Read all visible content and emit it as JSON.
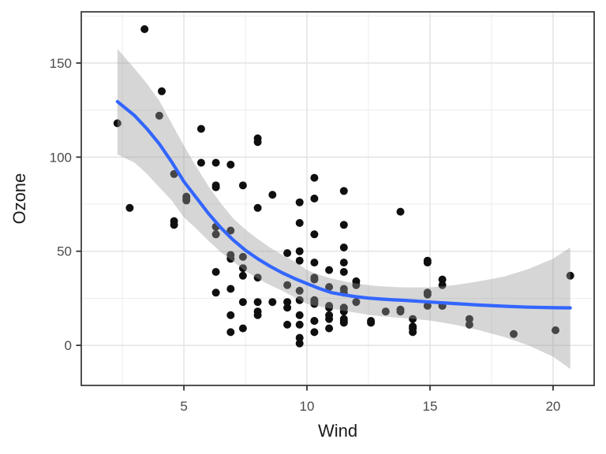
{
  "chart_data": {
    "type": "scatter",
    "title": "",
    "xlabel": "Wind",
    "ylabel": "Ozone",
    "grid": "on",
    "legend": "none",
    "x_domain": [
      0.83,
      21.67
    ],
    "y_domain": [
      -21.3,
      177.2
    ],
    "x_ticks": [
      5,
      10,
      15,
      20
    ],
    "x_tick_labels": [
      "5",
      "10",
      "15",
      "20"
    ],
    "y_ticks": [
      0,
      50,
      100,
      150
    ],
    "y_tick_labels": [
      "0",
      "50",
      "100",
      "150"
    ],
    "x_minor_gridlines": [
      2.5,
      7.5,
      12.5,
      17.5
    ],
    "y_minor_gridlines": [
      25,
      75,
      125,
      175
    ],
    "points": [
      [
        7.4,
        41
      ],
      [
        8.0,
        36
      ],
      [
        12.6,
        12
      ],
      [
        11.5,
        18
      ],
      [
        14.9,
        28
      ],
      [
        8.6,
        23
      ],
      [
        13.8,
        19
      ],
      [
        20.1,
        8
      ],
      [
        6.9,
        7
      ],
      [
        9.7,
        16
      ],
      [
        9.2,
        11
      ],
      [
        10.9,
        14
      ],
      [
        13.2,
        18
      ],
      [
        11.5,
        14
      ],
      [
        12.0,
        34
      ],
      [
        18.4,
        6
      ],
      [
        11.5,
        30
      ],
      [
        9.7,
        11
      ],
      [
        9.7,
        1
      ],
      [
        16.6,
        11
      ],
      [
        9.7,
        4
      ],
      [
        12.0,
        32
      ],
      [
        12.0,
        23
      ],
      [
        14.9,
        45
      ],
      [
        5.7,
        115
      ],
      [
        7.4,
        37
      ],
      [
        9.7,
        29
      ],
      [
        13.8,
        71
      ],
      [
        11.5,
        39
      ],
      [
        8.0,
        23
      ],
      [
        14.9,
        21
      ],
      [
        20.7,
        37
      ],
      [
        9.2,
        20
      ],
      [
        11.5,
        12
      ],
      [
        10.3,
        13
      ],
      [
        4.1,
        135
      ],
      [
        9.2,
        49
      ],
      [
        9.2,
        32
      ],
      [
        4.6,
        64
      ],
      [
        10.9,
        40
      ],
      [
        5.1,
        77
      ],
      [
        6.3,
        97
      ],
      [
        5.7,
        97
      ],
      [
        7.4,
        85
      ],
      [
        14.3,
        10
      ],
      [
        14.9,
        27
      ],
      [
        14.3,
        7
      ],
      [
        6.9,
        48
      ],
      [
        10.3,
        35
      ],
      [
        6.9,
        61
      ],
      [
        5.1,
        79
      ],
      [
        6.3,
        63
      ],
      [
        6.9,
        16
      ],
      [
        8.6,
        80
      ],
      [
        8.0,
        108
      ],
      [
        11.5,
        20
      ],
      [
        11.5,
        52
      ],
      [
        11.5,
        82
      ],
      [
        9.7,
        50
      ],
      [
        11.5,
        64
      ],
      [
        10.3,
        59
      ],
      [
        6.3,
        39
      ],
      [
        7.4,
        9
      ],
      [
        10.9,
        16
      ],
      [
        10.3,
        78
      ],
      [
        15.5,
        35
      ],
      [
        4.6,
        66
      ],
      [
        4.0,
        122
      ],
      [
        10.3,
        89
      ],
      [
        8.0,
        110
      ],
      [
        11.5,
        44
      ],
      [
        11.5,
        28
      ],
      [
        9.7,
        65
      ],
      [
        10.3,
        22
      ],
      [
        6.3,
        59
      ],
      [
        7.4,
        23
      ],
      [
        10.9,
        31
      ],
      [
        10.3,
        44
      ],
      [
        15.5,
        21
      ],
      [
        14.3,
        9
      ],
      [
        9.7,
        45
      ],
      [
        3.4,
        168
      ],
      [
        8.0,
        73
      ],
      [
        9.7,
        76
      ],
      [
        2.3,
        118
      ],
      [
        6.3,
        84
      ],
      [
        6.3,
        85
      ],
      [
        6.9,
        96
      ],
      [
        5.1,
        78
      ],
      [
        2.8,
        73
      ],
      [
        4.6,
        91
      ],
      [
        7.4,
        47
      ],
      [
        15.5,
        32
      ],
      [
        10.9,
        20
      ],
      [
        10.3,
        23
      ],
      [
        10.9,
        21
      ],
      [
        9.7,
        24
      ],
      [
        14.9,
        44
      ],
      [
        15.5,
        21
      ],
      [
        6.3,
        28
      ],
      [
        10.9,
        9
      ],
      [
        11.5,
        13
      ],
      [
        6.9,
        46
      ],
      [
        13.8,
        18
      ],
      [
        10.3,
        13
      ],
      [
        10.3,
        24
      ],
      [
        8.0,
        16
      ],
      [
        12.6,
        13
      ],
      [
        9.2,
        23
      ],
      [
        10.3,
        36
      ],
      [
        10.3,
        7
      ],
      [
        16.6,
        14
      ],
      [
        6.9,
        30
      ],
      [
        14.3,
        14
      ],
      [
        8.0,
        18
      ],
      [
        11.5,
        20
      ]
    ],
    "smooth": {
      "method": "loess",
      "x": [
        2.3,
        3,
        3.5,
        4,
        4.5,
        5,
        5.5,
        6,
        6.5,
        7,
        7.5,
        8,
        8.5,
        9,
        9.5,
        10,
        10.5,
        11,
        11.5,
        12,
        12.5,
        13,
        13.5,
        14,
        15,
        16,
        17,
        18,
        19,
        20,
        20.7
      ],
      "fit": [
        129.5,
        122,
        115,
        107,
        97.5,
        87,
        78.5,
        70,
        62.5,
        56,
        50.5,
        46,
        42,
        38.5,
        35.5,
        32.8,
        30.2,
        28,
        26.8,
        25.8,
        25.1,
        24.6,
        24.2,
        23.9,
        23,
        22.2,
        21.4,
        20.8,
        20.3,
        20,
        19.9
      ],
      "upper": [
        157.5,
        147,
        139,
        130,
        118,
        106,
        95,
        84.5,
        75.5,
        67.5,
        61.5,
        56.5,
        52,
        48,
        44.5,
        40,
        37.5,
        35.5,
        34,
        32.8,
        32,
        31.4,
        31,
        30.8,
        30.8,
        32,
        34,
        36.5,
        40.5,
        46,
        52
      ],
      "lower": [
        101.5,
        97,
        91,
        84,
        77,
        68,
        62,
        55.5,
        49.5,
        44.5,
        39.5,
        35.5,
        32,
        29,
        25.5,
        22,
        20.7,
        19.5,
        18.3,
        17.3,
        16.2,
        15.5,
        14.9,
        14.4,
        13.2,
        11,
        8,
        4.5,
        0,
        -6,
        -12.5
      ]
    },
    "colors": {
      "point": "#0f0f0f",
      "line": "#3366FF",
      "ribbon": "rgba(153,153,153,0.4)",
      "grid_major": "#e3e3e3",
      "grid_minor": "#ededed",
      "panel_border": "#333333",
      "tick_mark": "#333333",
      "tick_label": "#4a4a4a",
      "axis_title": "#1a1a1a",
      "panel_background": "#ffffff",
      "figure_background": "#ffffff"
    }
  }
}
